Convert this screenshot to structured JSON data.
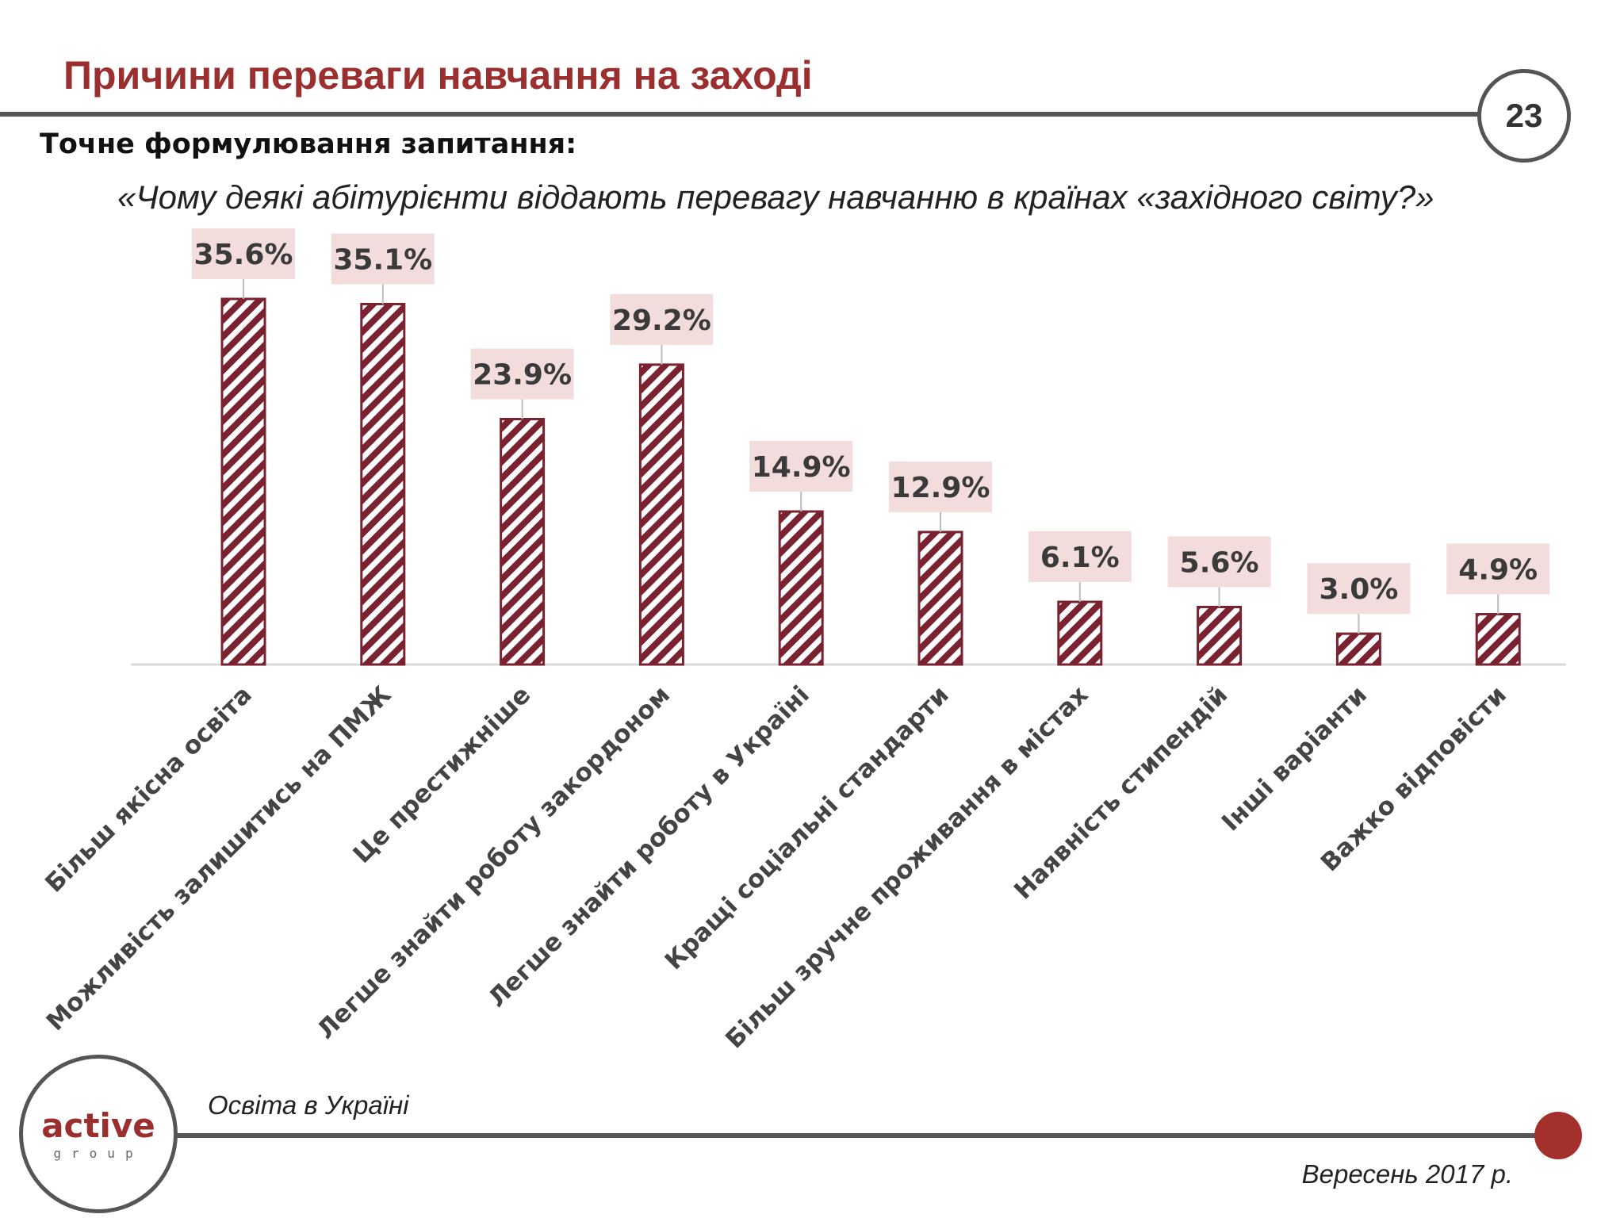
{
  "header": {
    "title": "Причини переваги навчання на заході",
    "page_number": "23"
  },
  "question": {
    "label": "Точне формулювання запитання:",
    "text": "«Чому деякі абітурієнти віддають перевагу навчанню в країнах «західного світу?»"
  },
  "chart_data": {
    "type": "bar",
    "categories": [
      "Більш якісна освіта",
      "Можливість залишитись на ПМЖ",
      "Це престижніше",
      "Легше знайти роботу закордоном",
      "Легше знайти роботу в Україні",
      "Кращі соціальні стандарти",
      "Більш зручне проживання в містах",
      "Наявність стипендій",
      "Інші варіанти",
      "Важко відповісти"
    ],
    "values": [
      35.6,
      35.1,
      23.9,
      29.2,
      14.9,
      12.9,
      6.1,
      5.6,
      3.0,
      4.9
    ],
    "value_labels": [
      "35.6%",
      "35.1%",
      "23.9%",
      "29.2%",
      "14.9%",
      "12.9%",
      "6.1%",
      "5.6%",
      "3.0%",
      "4.9%"
    ],
    "title": "",
    "xlabel": "",
    "ylabel": "",
    "ylim": [
      0,
      40
    ],
    "grid": false,
    "bar_pattern": "diagonal-stripes",
    "bar_color": "#7a2230",
    "label_box_color": "#f3dcdc"
  },
  "footer": {
    "source": "Освіта в Україні",
    "date": "Вересень 2017 р."
  },
  "logo": {
    "word": "active",
    "sub": "group",
    "icon": "active-group-logo"
  },
  "colors": {
    "title": "#9b2f2f",
    "rules": "#555555",
    "accent_dot": "#a3302a"
  }
}
